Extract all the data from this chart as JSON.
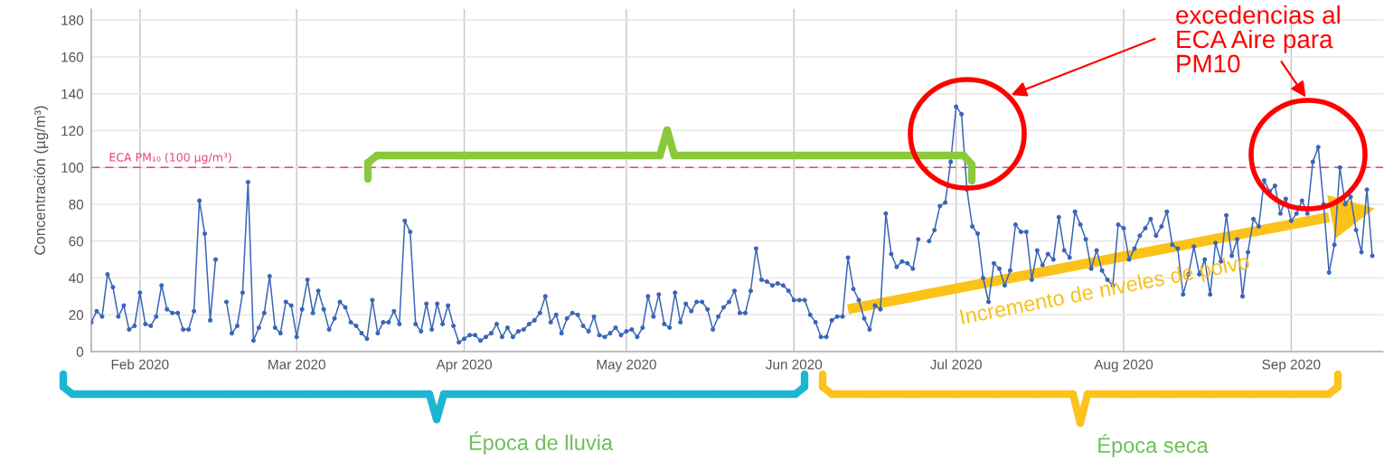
{
  "chart_data": {
    "type": "line",
    "ylabel": "Concentración (µg/m³)",
    "x": [
      "2020-01-23",
      "2020-01-24",
      "2020-01-25",
      "2020-01-26",
      "2020-01-27",
      "2020-01-28",
      "2020-01-29",
      "2020-01-30",
      "2020-01-31",
      "2020-02-01",
      "2020-02-02",
      "2020-02-03",
      "2020-02-04",
      "2020-02-05",
      "2020-02-06",
      "2020-02-07",
      "2020-02-08",
      "2020-02-09",
      "2020-02-10",
      "2020-02-11",
      "2020-02-12",
      "2020-02-13",
      "2020-02-14",
      "2020-02-15",
      "2020-02-16",
      "2020-02-17",
      "2020-02-18",
      "2020-02-19",
      "2020-02-20",
      "2020-02-21",
      "2020-02-22",
      "2020-02-23",
      "2020-02-24",
      "2020-02-25",
      "2020-02-26",
      "2020-02-27",
      "2020-02-28",
      "2020-02-29",
      "2020-03-01",
      "2020-03-02",
      "2020-03-03",
      "2020-03-04",
      "2020-03-05",
      "2020-03-06",
      "2020-03-07",
      "2020-03-08",
      "2020-03-09",
      "2020-03-10",
      "2020-03-11",
      "2020-03-12",
      "2020-03-13",
      "2020-03-14",
      "2020-03-15",
      "2020-03-16",
      "2020-03-17",
      "2020-03-18",
      "2020-03-19",
      "2020-03-20",
      "2020-03-21",
      "2020-03-22",
      "2020-03-23",
      "2020-03-24",
      "2020-03-25",
      "2020-03-26",
      "2020-03-27",
      "2020-03-28",
      "2020-03-29",
      "2020-03-30",
      "2020-03-31",
      "2020-04-01",
      "2020-04-02",
      "2020-04-03",
      "2020-04-04",
      "2020-04-05",
      "2020-04-06",
      "2020-04-07",
      "2020-04-08",
      "2020-04-09",
      "2020-04-10",
      "2020-04-11",
      "2020-04-12",
      "2020-04-13",
      "2020-04-14",
      "2020-04-15",
      "2020-04-16",
      "2020-04-17",
      "2020-04-18",
      "2020-04-19",
      "2020-04-20",
      "2020-04-21",
      "2020-04-22",
      "2020-04-23",
      "2020-04-24",
      "2020-04-25",
      "2020-04-26",
      "2020-04-27",
      "2020-04-28",
      "2020-04-29",
      "2020-04-30",
      "2020-05-01",
      "2020-05-02",
      "2020-05-03",
      "2020-05-04",
      "2020-05-05",
      "2020-05-06",
      "2020-05-07",
      "2020-05-08",
      "2020-05-09",
      "2020-05-10",
      "2020-05-11",
      "2020-05-12",
      "2020-05-13",
      "2020-05-14",
      "2020-05-15",
      "2020-05-16",
      "2020-05-17",
      "2020-05-18",
      "2020-05-19",
      "2020-05-20",
      "2020-05-21",
      "2020-05-22",
      "2020-05-23",
      "2020-05-24",
      "2020-05-25",
      "2020-05-26",
      "2020-05-27",
      "2020-05-28",
      "2020-05-29",
      "2020-05-30",
      "2020-05-31",
      "2020-06-01",
      "2020-06-02",
      "2020-06-03",
      "2020-06-04",
      "2020-06-05",
      "2020-06-06",
      "2020-06-07",
      "2020-06-08",
      "2020-06-09",
      "2020-06-10",
      "2020-06-11",
      "2020-06-12",
      "2020-06-13",
      "2020-06-14",
      "2020-06-15",
      "2020-06-16",
      "2020-06-17",
      "2020-06-18",
      "2020-06-19",
      "2020-06-20",
      "2020-06-21",
      "2020-06-22",
      "2020-06-23",
      "2020-06-24",
      "2020-06-25",
      "2020-06-26",
      "2020-06-27",
      "2020-06-28",
      "2020-06-29",
      "2020-06-30",
      "2020-07-01",
      "2020-07-02",
      "2020-07-03",
      "2020-07-04",
      "2020-07-05",
      "2020-07-06",
      "2020-07-07",
      "2020-07-08",
      "2020-07-09",
      "2020-07-10",
      "2020-07-11",
      "2020-07-12",
      "2020-07-13",
      "2020-07-14",
      "2020-07-15",
      "2020-07-16",
      "2020-07-17",
      "2020-07-18",
      "2020-07-19",
      "2020-07-20",
      "2020-07-21",
      "2020-07-22",
      "2020-07-23",
      "2020-07-24",
      "2020-07-25",
      "2020-07-26",
      "2020-07-27",
      "2020-07-28",
      "2020-07-29",
      "2020-07-30",
      "2020-07-31",
      "2020-08-01",
      "2020-08-02",
      "2020-08-03",
      "2020-08-04",
      "2020-08-05",
      "2020-08-06",
      "2020-08-07",
      "2020-08-08",
      "2020-08-09",
      "2020-08-10",
      "2020-08-11",
      "2020-08-12",
      "2020-08-13",
      "2020-08-14",
      "2020-08-15",
      "2020-08-16",
      "2020-08-17",
      "2020-08-18",
      "2020-08-19",
      "2020-08-20",
      "2020-08-21",
      "2020-08-22",
      "2020-08-23",
      "2020-08-24",
      "2020-08-25",
      "2020-08-26",
      "2020-08-27",
      "2020-08-28",
      "2020-08-29",
      "2020-08-30",
      "2020-08-31",
      "2020-09-01",
      "2020-09-02",
      "2020-09-03",
      "2020-09-04",
      "2020-09-05",
      "2020-09-06",
      "2020-09-07",
      "2020-09-08",
      "2020-09-09",
      "2020-09-10",
      "2020-09-11",
      "2020-09-12",
      "2020-09-13",
      "2020-09-14",
      "2020-09-15",
      "2020-09-16"
    ],
    "series": [
      {
        "color": "#3a66b8",
        "values": [
          16,
          22,
          19,
          42,
          35,
          19,
          25,
          12,
          14,
          32,
          15,
          14,
          19,
          36,
          23,
          21,
          21,
          12,
          12,
          22,
          82,
          64,
          17,
          50,
          null,
          27,
          10,
          14,
          32,
          92,
          6,
          13,
          21,
          41,
          13,
          10,
          27,
          25,
          8,
          23,
          39,
          21,
          33,
          23,
          12,
          18,
          27,
          24,
          16,
          14,
          10,
          7,
          28,
          10,
          16,
          16,
          22,
          15,
          71,
          65,
          15,
          11,
          26,
          12,
          26,
          15,
          25,
          14,
          5,
          7,
          9,
          9,
          6,
          8,
          10,
          15,
          8,
          13,
          8,
          11,
          12,
          15,
          17,
          21,
          30,
          16,
          20,
          10,
          18,
          21,
          20,
          14,
          11,
          19,
          9,
          8,
          10,
          13,
          9,
          11,
          12,
          8,
          13,
          30,
          19,
          31,
          15,
          13,
          32,
          16,
          26,
          22,
          27,
          27,
          23,
          12,
          19,
          24,
          27,
          33,
          21,
          21,
          33,
          56,
          39,
          38,
          36,
          37,
          36,
          33,
          28,
          28,
          28,
          20,
          16,
          8,
          8,
          17,
          19,
          19,
          51,
          34,
          28,
          18,
          12,
          25,
          23,
          75,
          53,
          46,
          49,
          48,
          45,
          61,
          null,
          60,
          66,
          79,
          81,
          103,
          133,
          129,
          88,
          68,
          64,
          40,
          27,
          48,
          45,
          36,
          44,
          69,
          65,
          65,
          39,
          55,
          47,
          53,
          50,
          73,
          55,
          51,
          76,
          69,
          61,
          45,
          55,
          44,
          39,
          36,
          69,
          67,
          50,
          56,
          63,
          67,
          72,
          63,
          68,
          76,
          58,
          56,
          31,
          42,
          57,
          42,
          50,
          31,
          59,
          49,
          74,
          52,
          61,
          30,
          54,
          72,
          68,
          93,
          87,
          90,
          75,
          83,
          71,
          75,
          82,
          75,
          103,
          111,
          80,
          43,
          58,
          100,
          80,
          84,
          66,
          54,
          88,
          52
        ]
      },
      {
        "type": "line",
        "color": "#fbc21a",
        "marker": "none",
        "x": [
          "2020-06-11",
          "2020-09-08"
        ],
        "values": [
          23,
          73
        ]
      }
    ],
    "xlim": [
      "2020-01-23",
      "2020-09-18"
    ],
    "xticks": [
      {
        "value": "2020-02-01",
        "label": "Feb 2020"
      },
      {
        "value": "2020-03-01",
        "label": "Mar 2020"
      },
      {
        "value": "2020-04-01",
        "label": "Apr 2020"
      },
      {
        "value": "2020-05-01",
        "label": "May 2020"
      },
      {
        "value": "2020-06-01",
        "label": "Jun 2020"
      },
      {
        "value": "2020-07-01",
        "label": "Jul 2020"
      },
      {
        "value": "2020-08-01",
        "label": "Aug 2020"
      },
      {
        "value": "2020-09-01",
        "label": "Sep 2020"
      }
    ],
    "ylim": [
      0,
      186
    ],
    "yticks": [
      0,
      20,
      40,
      60,
      80,
      100,
      120,
      140,
      160,
      180
    ],
    "grid": true,
    "marker": "circle",
    "line_style": "solid",
    "ref_lines": [
      {
        "axis": "y",
        "value": 100,
        "label": "ECA PM₁₀ (100 µg/m³)",
        "color": "#e8466a",
        "line_style": "dashed"
      }
    ],
    "annotations": [
      "excedencias al\nECA Aire para\nPM10",
      "Incremento de niveles de polvo",
      "Época de lluvia",
      "Época seca"
    ]
  }
}
